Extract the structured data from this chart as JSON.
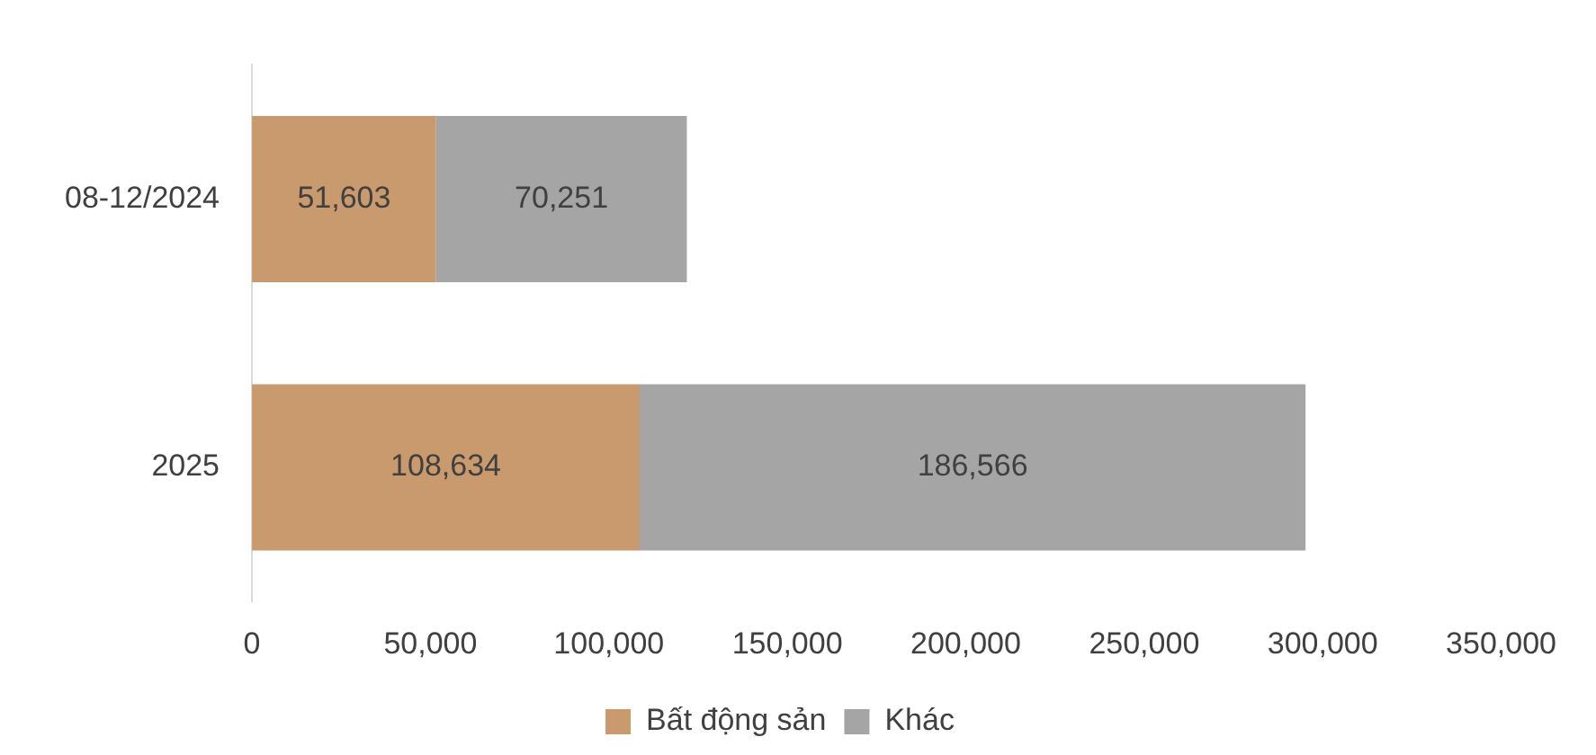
{
  "chart_data": {
    "type": "bar",
    "orientation": "horizontal",
    "stacked": true,
    "categories": [
      "08-12/2024",
      "2025"
    ],
    "series": [
      {
        "name": "Bất động sản",
        "color": "#c99a6e",
        "values": [
          51603,
          108634
        ],
        "value_labels": [
          "51,603",
          "108,634"
        ]
      },
      {
        "name": "Khác",
        "color": "#a5a5a5",
        "values": [
          70251,
          186566
        ],
        "value_labels": [
          "70,251",
          "186,566"
        ]
      }
    ],
    "xlim": [
      0,
      350000
    ],
    "xticks": [
      {
        "value": 0,
        "label": "0"
      },
      {
        "value": 50000,
        "label": "50,000"
      },
      {
        "value": 100000,
        "label": "100,000"
      },
      {
        "value": 150000,
        "label": "150,000"
      },
      {
        "value": 200000,
        "label": "200,000"
      },
      {
        "value": 250000,
        "label": "250,000"
      },
      {
        "value": 300000,
        "label": "300,000"
      },
      {
        "value": 350000,
        "label": "350,000"
      }
    ],
    "grid": false,
    "legend": "bottom"
  }
}
